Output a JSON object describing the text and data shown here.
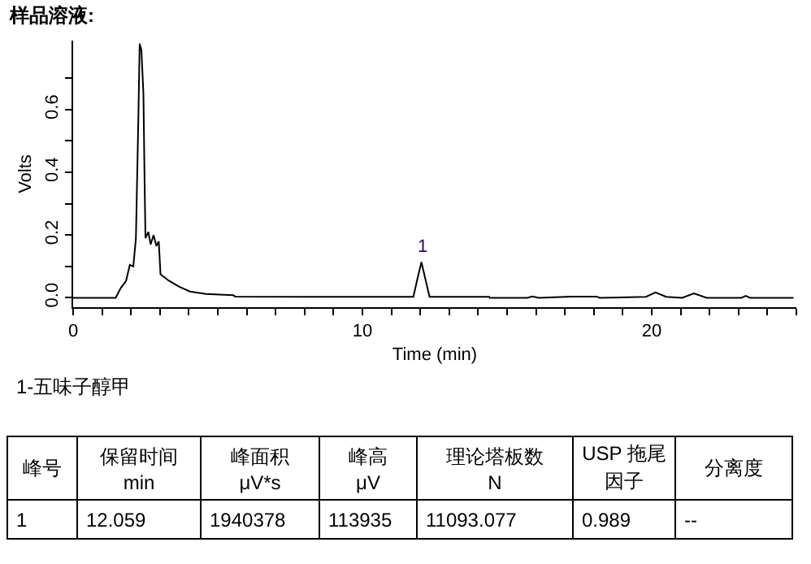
{
  "chart_data": {
    "type": "line",
    "title": "样品溶液:",
    "xlabel": "Time (min)",
    "ylabel": "Volts",
    "x": [
      0,
      1.47,
      1.64,
      1.83,
      1.96,
      2.08,
      2.17,
      2.25,
      2.3,
      2.36,
      2.43,
      2.47,
      2.5,
      2.6,
      2.68,
      2.78,
      2.88,
      2.96,
      3.02,
      3.3,
      3.67,
      4.04,
      4.6,
      5.54,
      5.6,
      8,
      10,
      11.76,
      11.9,
      12.04,
      12.2,
      12.32,
      13,
      14.38,
      14.4,
      15.7,
      15.87,
      16.1,
      17.2,
      18.1,
      18.2,
      19.8,
      20.13,
      20.5,
      21.05,
      21.46,
      21.9,
      23.1,
      23.25,
      23.4,
      24.9
    ],
    "series": [
      {
        "color": "#000000",
        "values": [
          0,
          0,
          0.03,
          0.054,
          0.105,
          0.1,
          0.19,
          0.55,
          0.81,
          0.79,
          0.65,
          0.37,
          0.19,
          0.21,
          0.17,
          0.2,
          0.165,
          0.18,
          0.075,
          0.055,
          0.035,
          0.02,
          0.012,
          0.008,
          0.004,
          0.003,
          0.003,
          0.003,
          0.06,
          0.114,
          0.05,
          0.003,
          0.003,
          0.003,
          0,
          0,
          0.004,
          0,
          0.004,
          0.004,
          0,
          0.003,
          0.017,
          0.003,
          0,
          0.014,
          0,
          0,
          0.006,
          0,
          0
        ]
      }
    ],
    "xlim": [
      0,
      25
    ],
    "xticks": [
      0,
      {
        "value": 1,
        "label": null
      },
      {
        "value": 2,
        "label": null
      },
      {
        "value": 3,
        "label": null
      },
      {
        "value": 4,
        "label": null
      },
      {
        "value": 5,
        "label": null
      },
      {
        "value": 6,
        "label": null
      },
      {
        "value": 7,
        "label": null
      },
      {
        "value": 8,
        "label": null
      },
      {
        "value": 9,
        "label": null
      },
      10,
      {
        "value": 11,
        "label": null
      },
      {
        "value": 12,
        "label": null
      },
      {
        "value": 13,
        "label": null
      },
      {
        "value": 14,
        "label": null
      },
      {
        "value": 15,
        "label": null
      },
      {
        "value": 16,
        "label": null
      },
      {
        "value": 17,
        "label": null
      },
      {
        "value": 18,
        "label": null
      },
      {
        "value": 19,
        "label": null
      },
      20,
      {
        "value": 21,
        "label": null
      },
      {
        "value": 22,
        "label": null
      },
      {
        "value": 23,
        "label": null
      },
      {
        "value": 24,
        "label": null
      },
      {
        "value": 25,
        "label": null
      }
    ],
    "ylim": [
      -0.03,
      0.82
    ],
    "yticks": [
      {
        "value": 0,
        "label": "0.0"
      },
      {
        "value": 0.1,
        "label": null
      },
      0.2,
      {
        "value": 0.3,
        "label": null
      },
      0.4,
      {
        "value": 0.5,
        "label": null
      },
      0.6,
      {
        "value": 0.7,
        "label": null
      }
    ],
    "grid": false,
    "marker": "none",
    "line_style": "solid",
    "annotations": [
      {
        "text": "1",
        "x": 12.059,
        "y": 0.114
      },
      "1-五味子醇甲",
      "峰号",
      "保留时间\nmin",
      "峰面积\nμV*s",
      "峰高\nμV",
      "理论塔板数\nN",
      "USP 拖尾因子",
      "分离度",
      "1",
      "12.059",
      "1940378",
      "113935",
      "11093.077",
      "0.989",
      "--"
    ]
  }
}
